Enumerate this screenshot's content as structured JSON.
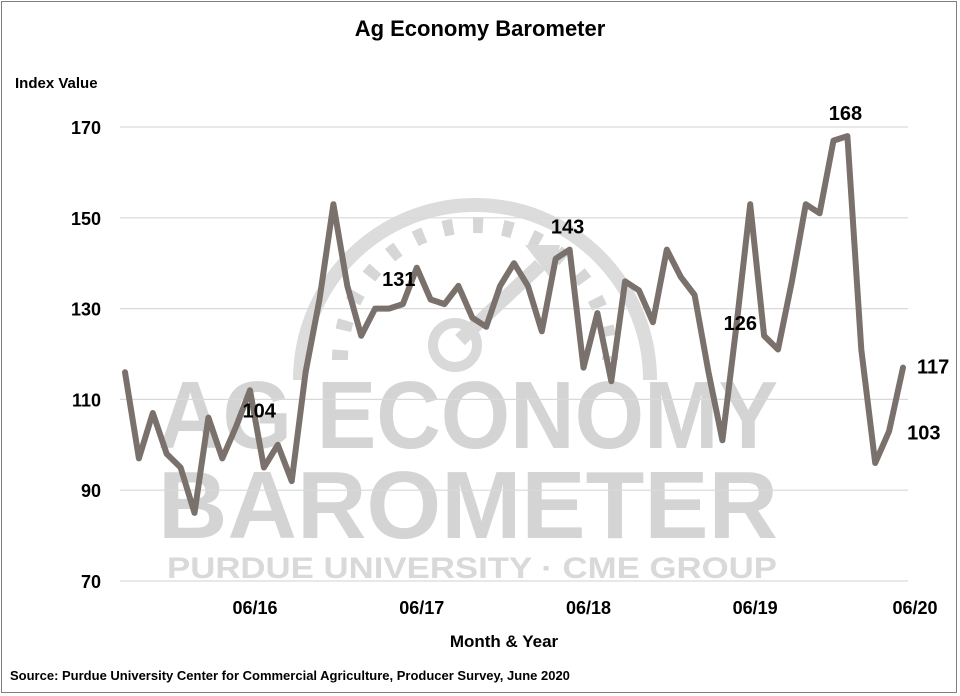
{
  "chart_data": {
    "type": "line",
    "title": "Ag Economy Barometer",
    "ylabel": "Index Value",
    "xlabel": "Month & Year",
    "ylim": [
      70,
      170
    ],
    "yticks": [
      70,
      90,
      110,
      130,
      150,
      170
    ],
    "x_tick_labels": [
      "06/16",
      "06/17",
      "06/18",
      "06/19",
      "06/20"
    ],
    "grid": true,
    "line_color": "#7a716c",
    "series": [
      {
        "values": [
          116,
          97,
          107,
          98,
          95,
          85,
          106,
          97,
          104,
          112,
          95,
          100,
          92,
          116,
          132,
          153,
          135,
          124,
          130,
          130,
          131,
          139,
          132,
          131,
          135,
          128,
          126,
          135,
          140,
          135,
          125,
          141,
          143,
          117,
          129,
          114,
          136,
          134,
          127,
          143,
          137,
          133,
          116,
          101,
          126,
          153,
          124,
          121,
          136,
          153,
          151,
          167,
          168,
          121,
          96,
          103,
          117
        ]
      }
    ],
    "data_labels": [
      {
        "text": "104",
        "index": 8
      },
      {
        "text": "131",
        "index": 20
      },
      {
        "text": "143",
        "index": 32
      },
      {
        "text": "126",
        "index": 44
      },
      {
        "text": "168",
        "index": 52
      },
      {
        "text": "117",
        "index": 56
      },
      {
        "text": "103",
        "index": 55
      }
    ],
    "watermark": {
      "line1": "AG ECONOMY",
      "line2": "BAROMETER",
      "line3": "PURDUE UNIVERSITY · CME GROUP"
    },
    "source": "Source: Purdue University Center for Commercial Agriculture, Producer Survey, June 2020"
  }
}
